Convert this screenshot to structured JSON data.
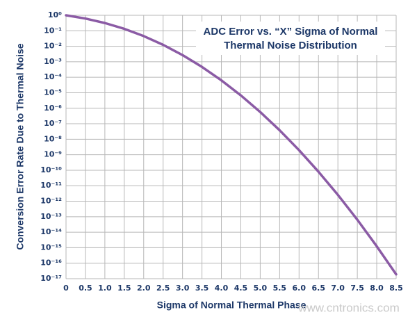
{
  "chart_data": {
    "type": "line",
    "title": [
      "ADC Error vs. “X” Sigma of Normal",
      "Thermal Noise Distribution"
    ],
    "x_label": "Sigma of Normal Thermal Phase",
    "y_label": "Conversion Error Rate Due to Thermal Noise",
    "watermark": "www.cntronics.com",
    "yscale": "log",
    "grid": true,
    "x": [
      0,
      0.5,
      1,
      1.5,
      2,
      2.5,
      3,
      3.5,
      4,
      4.5,
      5,
      5.5,
      6,
      6.5,
      7,
      7.5,
      8,
      8.5
    ],
    "series": [
      {
        "color": "#8b5ba5",
        "values": [
          1,
          0.617,
          0.317,
          0.134,
          0.0455,
          0.0124,
          0.0027,
          0.000465,
          6.33e-05,
          6.8e-06,
          5.73e-07,
          3.8e-08,
          1.97e-09,
          8e-11,
          2.56e-12,
          6.4e-14,
          1.24e-15,
          1.9e-17
        ]
      }
    ],
    "xlim": [
      0,
      8.5
    ],
    "xticks": [
      0,
      0.5,
      {
        "value": 1,
        "label": "1.0"
      },
      1.5,
      {
        "value": 2,
        "label": "2.0"
      },
      2.5,
      {
        "value": 3,
        "label": "3.0"
      },
      3.5,
      {
        "value": 4,
        "label": "4.0"
      },
      4.5,
      {
        "value": 5,
        "label": "5.0"
      },
      5.5,
      {
        "value": 6,
        "label": "6.0"
      },
      6.5,
      {
        "value": 7,
        "label": "7.0"
      },
      7.5,
      {
        "value": 8,
        "label": "8.0"
      },
      8.5
    ],
    "ylim": [
      1e-17,
      1
    ],
    "yticks": [
      {
        "value": 1,
        "label": "10⁰"
      },
      {
        "value": 0.1,
        "label": "10⁻¹"
      },
      {
        "value": 0.01,
        "label": "10⁻²"
      },
      {
        "value": 0.001,
        "label": "10⁻³"
      },
      {
        "value": 0.0001,
        "label": "10⁻⁴"
      },
      {
        "value": 1e-05,
        "label": "10⁻⁵"
      },
      {
        "value": 1e-06,
        "label": "10⁻⁶"
      },
      {
        "value": 1e-07,
        "label": "10⁻⁷"
      },
      {
        "value": 1e-08,
        "label": "10⁻⁸"
      },
      {
        "value": 1e-09,
        "label": "10⁻⁹"
      },
      {
        "value": 1e-10,
        "label": "10⁻¹⁰"
      },
      {
        "value": 1e-11,
        "label": "10⁻¹¹"
      },
      {
        "value": 1e-12,
        "label": "10⁻¹²"
      },
      {
        "value": 1e-13,
        "label": "10⁻¹³"
      },
      {
        "value": 1e-14,
        "label": "10⁻¹⁴"
      },
      {
        "value": 1e-15,
        "label": "10⁻¹⁵"
      },
      {
        "value": 1e-16,
        "label": "10⁻¹⁶"
      },
      {
        "value": 1e-17,
        "label": "10⁻¹⁷"
      }
    ]
  }
}
